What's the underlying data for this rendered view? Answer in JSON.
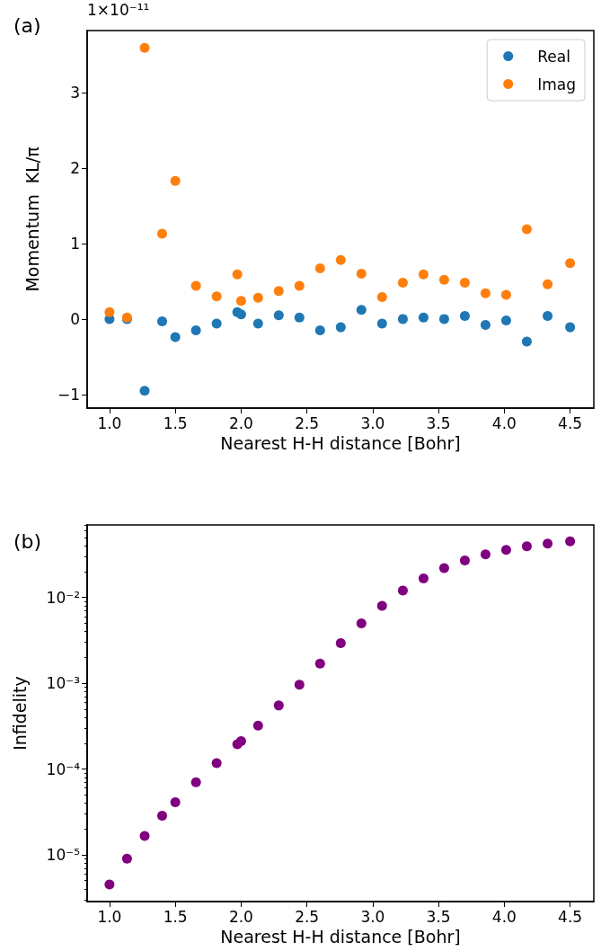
{
  "chart_data": [
    {
      "type": "scatter",
      "title": "(a)",
      "xlabel": "Nearest H-H distance [Bohr]",
      "ylabel": "Momentum  KL/π",
      "annotations": [
        "1×10⁻¹¹"
      ],
      "x": [
        1.0,
        1.133,
        1.267,
        1.4,
        1.5,
        1.657,
        1.814,
        1.971,
        2.0,
        2.129,
        2.286,
        2.443,
        2.6,
        2.757,
        2.914,
        3.071,
        3.229,
        3.386,
        3.543,
        3.7,
        3.857,
        4.014,
        4.171,
        4.329,
        4.5
      ],
      "series": [
        {
          "name": "Real",
          "color": "#1f77b4",
          "values": [
            0.0,
            0.0,
            -0.95,
            -0.03,
            -0.24,
            -0.15,
            -0.06,
            0.09,
            0.06,
            -0.06,
            0.05,
            0.02,
            -0.15,
            -0.11,
            0.12,
            -0.06,
            0.0,
            0.02,
            0.0,
            0.04,
            -0.08,
            -0.02,
            -0.3,
            0.04,
            -0.11
          ]
        },
        {
          "name": "Imag",
          "color": "#ff7f0e",
          "values": [
            0.09,
            0.02,
            3.59,
            1.13,
            1.83,
            0.44,
            0.3,
            0.59,
            0.24,
            0.28,
            0.37,
            0.44,
            0.67,
            0.78,
            0.6,
            0.29,
            0.48,
            0.59,
            0.52,
            0.48,
            0.34,
            0.32,
            1.19,
            0.46,
            0.74
          ]
        }
      ],
      "xlim": [
        0.83,
        4.68
      ],
      "ylim": [
        -1.18,
        3.82
      ],
      "xticks": [
        {
          "value": 1,
          "label": "1.0"
        },
        1.5,
        {
          "value": 2,
          "label": "2.0"
        },
        2.5,
        {
          "value": 3,
          "label": "3.0"
        },
        3.5,
        {
          "value": 4,
          "label": "4.0"
        },
        4.5
      ],
      "yticks": [
        {
          "value": -1,
          "label": "−1"
        },
        0,
        1,
        2,
        3
      ],
      "grid": false,
      "legend": "top right",
      "marker": "circle"
    },
    {
      "type": "scatter",
      "title": "(b)",
      "xlabel": "Nearest H-H distance [Bohr]",
      "ylabel": "Infidelity",
      "x": [
        1.0,
        1.133,
        1.267,
        1.4,
        1.5,
        1.657,
        1.814,
        1.971,
        2.0,
        2.129,
        2.286,
        2.443,
        2.6,
        2.757,
        2.914,
        3.071,
        3.229,
        3.386,
        3.543,
        3.7,
        3.857,
        4.014,
        4.171,
        4.329,
        4.5
      ],
      "series": [
        {
          "color": "#800080",
          "values": [
            4.5e-06,
            9e-06,
            1.66e-05,
            2.85e-05,
            4.1e-05,
            7e-05,
            0.000117,
            0.000194,
            0.000211,
            0.00032,
            0.00055,
            0.00096,
            0.00169,
            0.00293,
            0.00499,
            0.00798,
            0.012,
            0.0167,
            0.022,
            0.027,
            0.0318,
            0.0359,
            0.0394,
            0.0424,
            0.045
          ]
        }
      ],
      "xlim": [
        0.83,
        4.68
      ],
      "ylim": [
        2.85e-06,
        0.07
      ],
      "log": "y",
      "xticks": [
        {
          "value": 1,
          "label": "1.0"
        },
        1.5,
        {
          "value": 2,
          "label": "2.0"
        },
        2.5,
        {
          "value": 3,
          "label": "3.0"
        },
        3.5,
        {
          "value": 4,
          "label": "4.0"
        },
        4.5
      ],
      "yticks": [
        {
          "value": 3e-06,
          "label": null
        },
        {
          "value": 4e-06,
          "label": null
        },
        {
          "value": 5e-06,
          "label": null
        },
        {
          "value": 6e-06,
          "label": null
        },
        {
          "value": 7e-06,
          "label": null
        },
        {
          "value": 8e-06,
          "label": null
        },
        {
          "value": 9e-06,
          "label": null
        },
        {
          "value": 1e-05,
          "label": "10⁻⁵"
        },
        {
          "value": 2e-05,
          "label": null
        },
        {
          "value": 3e-05,
          "label": null
        },
        {
          "value": 4e-05,
          "label": null
        },
        {
          "value": 5e-05,
          "label": null
        },
        {
          "value": 6e-05,
          "label": null
        },
        {
          "value": 7e-05,
          "label": null
        },
        {
          "value": 8e-05,
          "label": null
        },
        {
          "value": 9e-05,
          "label": null
        },
        {
          "value": 0.0001,
          "label": "10⁻⁴"
        },
        {
          "value": 0.0002,
          "label": null
        },
        {
          "value": 0.0003,
          "label": null
        },
        {
          "value": 0.0004,
          "label": null
        },
        {
          "value": 0.0005,
          "label": null
        },
        {
          "value": 0.0006,
          "label": null
        },
        {
          "value": 0.0007,
          "label": null
        },
        {
          "value": 0.0008,
          "label": null
        },
        {
          "value": 0.0009,
          "label": null
        },
        {
          "value": 0.001,
          "label": "10⁻³"
        },
        {
          "value": 0.002,
          "label": null
        },
        {
          "value": 0.003,
          "label": null
        },
        {
          "value": 0.004,
          "label": null
        },
        {
          "value": 0.005,
          "label": null
        },
        {
          "value": 0.006,
          "label": null
        },
        {
          "value": 0.007,
          "label": null
        },
        {
          "value": 0.008,
          "label": null
        },
        {
          "value": 0.009,
          "label": null
        },
        {
          "value": 0.01,
          "label": "10⁻²"
        },
        {
          "value": 0.02,
          "label": null
        },
        {
          "value": 0.03,
          "label": null
        },
        {
          "value": 0.04,
          "label": null
        },
        {
          "value": 0.05,
          "label": null
        },
        {
          "value": 0.06,
          "label": null
        },
        {
          "value": 0.07,
          "label": null
        }
      ],
      "grid": false,
      "legend": false,
      "marker": "circle"
    }
  ]
}
